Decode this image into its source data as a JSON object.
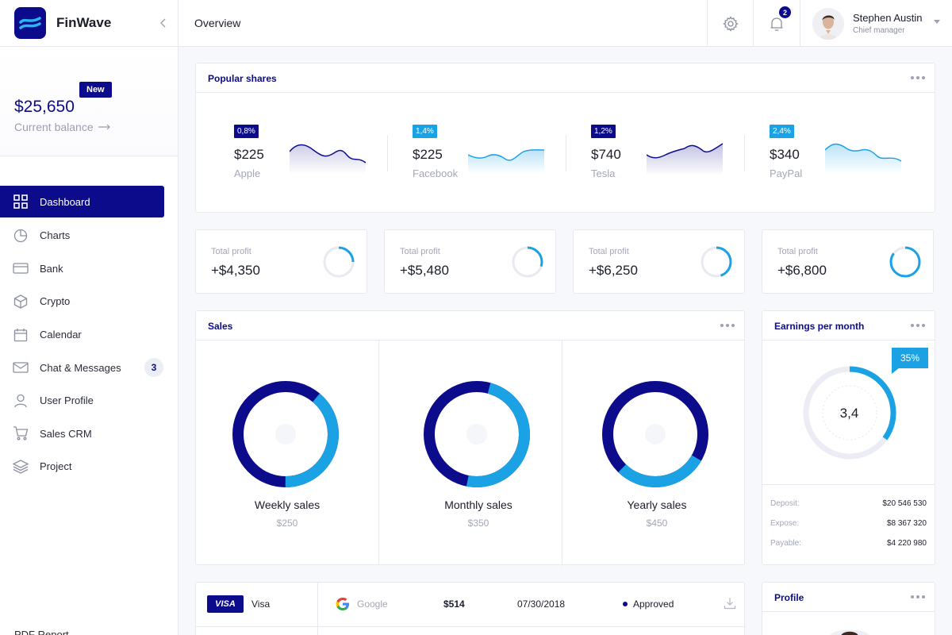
{
  "app": {
    "name": "FinWave"
  },
  "header": {
    "title": "Overview",
    "notifications": "2"
  },
  "user": {
    "name": "Stephen Austin",
    "role": "Chief manager"
  },
  "balance": {
    "badge": "New",
    "amount": "$25,650",
    "label": "Current balance"
  },
  "nav": {
    "items": [
      {
        "label": "Dashboard",
        "icon": "grid-icon",
        "active": true
      },
      {
        "label": "Charts",
        "icon": "pie-chart-icon"
      },
      {
        "label": "Bank",
        "icon": "card-icon"
      },
      {
        "label": "Crypto",
        "icon": "cube-icon"
      },
      {
        "label": "Calendar",
        "icon": "calendar-icon"
      },
      {
        "label": "Chat & Messages",
        "icon": "mail-icon",
        "badge": "3"
      },
      {
        "label": "User Profile",
        "icon": "user-icon"
      },
      {
        "label": "Sales CRM",
        "icon": "cart-icon"
      },
      {
        "label": "Project",
        "icon": "layers-icon"
      }
    ],
    "footer": "PDF Report"
  },
  "popular_shares": {
    "title": "Popular shares",
    "items": [
      {
        "pct": "0,8%",
        "price": "$225",
        "name": "Apple",
        "color": "#0b0b8c"
      },
      {
        "pct": "1,4%",
        "price": "$225",
        "name": "Facebook",
        "color": "#1ba2e4"
      },
      {
        "pct": "1,2%",
        "price": "$740",
        "name": "Tesla",
        "color": "#0b0b8c"
      },
      {
        "pct": "2,4%",
        "price": "$340",
        "name": "PayPal",
        "color": "#1ba2e4"
      }
    ]
  },
  "profits": [
    {
      "label": "Total profit",
      "value": "+$4,350",
      "progress": 0.25
    },
    {
      "label": "Total profit",
      "value": "+$5,480",
      "progress": 0.3
    },
    {
      "label": "Total profit",
      "value": "+$6,250",
      "progress": 0.45
    },
    {
      "label": "Total profit",
      "value": "+$6,800",
      "progress": 0.85
    }
  ],
  "sales": {
    "title": "Sales",
    "items": [
      {
        "name": "Weekly sales",
        "value": "$250",
        "share": 0.4
      },
      {
        "name": "Monthly sales",
        "value": "$350",
        "share": 0.5
      },
      {
        "name": "Yearly sales",
        "value": "$450",
        "share": 0.3
      }
    ]
  },
  "earnings": {
    "title": "Earnings per month",
    "badge": "35%",
    "center": "3,4",
    "progress": 0.35,
    "rows": [
      {
        "k": "Deposit:",
        "v": "$20 546 530"
      },
      {
        "k": "Expose:",
        "v": "$8 367 320"
      },
      {
        "k": "Payable:",
        "v": "$4 220 980"
      }
    ]
  },
  "transaction": {
    "card_logo": "VISA",
    "card_name": "Visa",
    "merchant": "Google",
    "amount": "$514",
    "date": "07/30/2018",
    "status": "Approved"
  },
  "profile": {
    "title": "Profile"
  }
}
